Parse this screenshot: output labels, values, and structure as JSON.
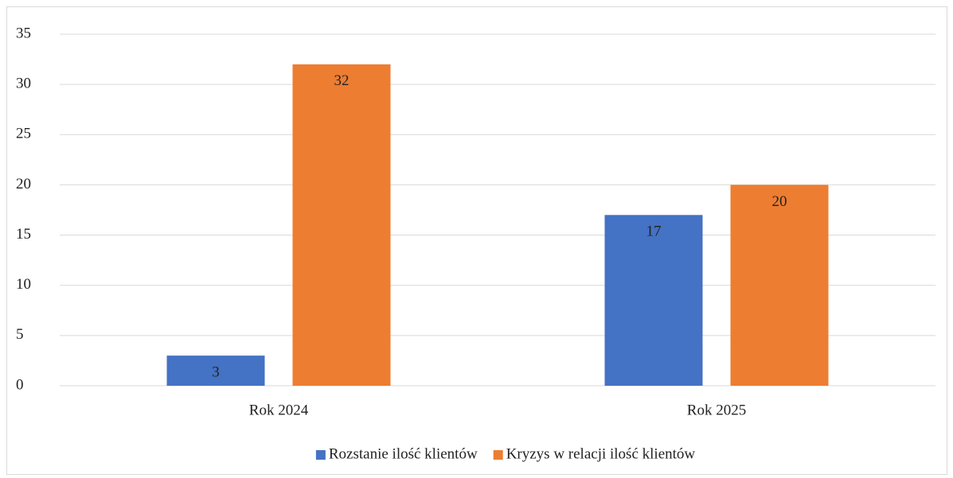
{
  "chart_data": {
    "type": "bar",
    "categories": [
      "Rok 2024",
      "Rok 2025"
    ],
    "series": [
      {
        "name": "Rozstanie ilość klientów",
        "color": "#4472c4",
        "values": [
          3,
          17
        ]
      },
      {
        "name": "Kryzys w relacji ilość klientów",
        "color": "#ed7d31",
        "values": [
          32,
          20
        ]
      }
    ],
    "ylim": [
      0,
      35
    ],
    "yticks": [
      0,
      5,
      10,
      15,
      20,
      25,
      30,
      35
    ],
    "grid": true,
    "legend": "bottom"
  }
}
